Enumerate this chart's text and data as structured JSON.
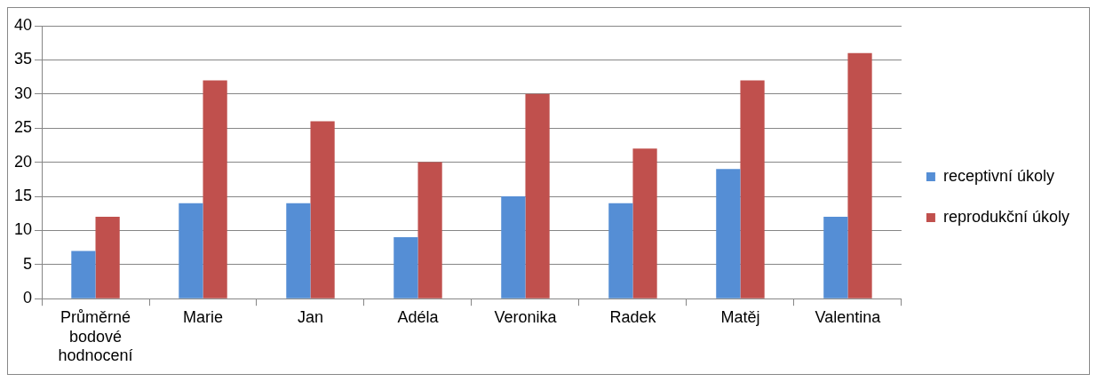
{
  "chart_data": {
    "type": "bar",
    "categories": [
      "Průměrné bodové hodnocení",
      "Marie",
      "Jan",
      "Adéla",
      "Veronika",
      "Radek",
      "Matěj",
      "Valentina"
    ],
    "series": [
      {
        "name": "receptivní úkoly",
        "color": "#558ed5",
        "values": [
          7,
          14,
          14,
          9,
          15,
          14,
          19,
          12
        ]
      },
      {
        "name": "reprodukční úkoly",
        "color": "#c0504d",
        "values": [
          12,
          32,
          26,
          20,
          30,
          22,
          32,
          36
        ]
      }
    ],
    "ylim": [
      0,
      40
    ],
    "yticks": [
      0,
      5,
      10,
      15,
      20,
      25,
      30,
      35,
      40
    ],
    "grid": "y",
    "legend": "right"
  }
}
